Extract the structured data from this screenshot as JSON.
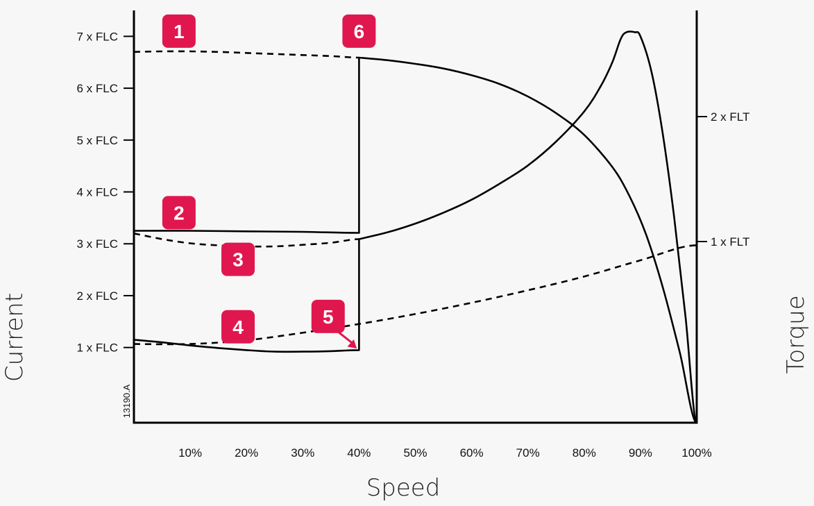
{
  "chart_data": {
    "type": "line",
    "xlabel": "Speed",
    "ylabel": "Current",
    "y2label": "Torque",
    "drawing_code": "13190.A",
    "x_ticks": [
      {
        "value": 10,
        "label": "10%"
      },
      {
        "value": 20,
        "label": "20%"
      },
      {
        "value": 30,
        "label": "30%"
      },
      {
        "value": 40,
        "label": "40%"
      },
      {
        "value": 50,
        "label": "50%"
      },
      {
        "value": 60,
        "label": "60%"
      },
      {
        "value": 70,
        "label": "70%"
      },
      {
        "value": 80,
        "label": "80%"
      },
      {
        "value": 90,
        "label": "90%"
      },
      {
        "value": 100,
        "label": "100%"
      }
    ],
    "y_ticks": [
      {
        "value": 1,
        "label": "1 x FLC"
      },
      {
        "value": 2,
        "label": "2 x FLC"
      },
      {
        "value": 3,
        "label": "3 x FLC"
      },
      {
        "value": 4,
        "label": "4 x FLC"
      },
      {
        "value": 5,
        "label": "5 x FLC"
      },
      {
        "value": 6,
        "label": "6 x FLC"
      },
      {
        "value": 7,
        "label": "7 x FLC"
      }
    ],
    "y2_ticks": [
      {
        "value": 1,
        "label": "1 x FLT"
      },
      {
        "value": 2,
        "label": "2 x FLT"
      }
    ],
    "xlim": [
      0,
      100
    ],
    "ylim": [
      -0.45,
      7.5
    ],
    "y2lim": [
      -0.45,
      2.85
    ],
    "grid": false,
    "series": [
      {
        "axis": "y",
        "style": "dashed",
        "x": [
          0,
          5,
          10,
          15,
          20,
          25,
          30,
          35,
          40
        ],
        "y": [
          6.7,
          6.71,
          6.71,
          6.7,
          6.68,
          6.66,
          6.64,
          6.62,
          6.59
        ]
      },
      {
        "axis": "y",
        "style": "solid",
        "x": [
          40,
          45,
          50,
          55,
          60,
          65,
          70,
          75,
          80,
          85,
          88,
          91,
          94,
          97,
          100
        ],
        "y": [
          6.59,
          6.54,
          6.47,
          6.38,
          6.25,
          6.08,
          5.84,
          5.52,
          5.1,
          4.48,
          3.93,
          3.18,
          2.15,
          0.9,
          -0.45
        ]
      },
      {
        "axis": "y",
        "style": "solid",
        "x": [
          0,
          10,
          20,
          30,
          40,
          40
        ],
        "y": [
          3.25,
          3.25,
          3.24,
          3.23,
          3.21,
          6.59
        ]
      },
      {
        "axis": "y",
        "style": "dashed",
        "x": [
          0,
          5,
          10,
          15,
          20,
          25,
          30,
          35,
          40
        ],
        "y": [
          3.2,
          3.09,
          3.01,
          2.97,
          2.95,
          2.95,
          2.98,
          3.02,
          3.09
        ]
      },
      {
        "axis": "y",
        "style": "solid",
        "x": [
          0,
          5,
          10,
          15,
          20,
          25,
          30,
          35,
          40,
          40
        ],
        "y": [
          1.15,
          1.1,
          1.04,
          0.99,
          0.95,
          0.92,
          0.92,
          0.93,
          0.95,
          3.09
        ]
      },
      {
        "axis": "y",
        "style": "solid",
        "x": [
          40,
          45,
          50,
          55,
          60,
          65,
          70,
          75,
          80,
          83,
          85,
          86.5,
          87.5,
          89,
          90,
          92,
          94,
          96,
          98,
          100
        ],
        "y": [
          3.09,
          3.22,
          3.39,
          3.6,
          3.85,
          4.16,
          4.51,
          4.97,
          5.55,
          6.05,
          6.5,
          6.95,
          7.08,
          7.08,
          7.0,
          6.3,
          5.1,
          3.5,
          1.6,
          -0.45
        ]
      },
      {
        "axis": "y2",
        "style": "dashed",
        "x": [
          0,
          10,
          20,
          30,
          40,
          50,
          60,
          70,
          80,
          90,
          100
        ],
        "y": [
          0.18,
          0.18,
          0.21,
          0.27,
          0.34,
          0.42,
          0.51,
          0.61,
          0.72,
          0.85,
          0.97
        ]
      }
    ],
    "markers": [
      {
        "label": "1",
        "x": 8,
        "y": 7.1
      },
      {
        "label": "6",
        "x": 40,
        "y": 7.1
      },
      {
        "label": "2",
        "x": 8,
        "y": 3.6
      },
      {
        "label": "3",
        "x": 18.5,
        "y": 2.7
      },
      {
        "label": "4",
        "x": 18.5,
        "y": 1.4
      },
      {
        "label": "5",
        "x": 34.5,
        "y": 1.6,
        "arrow_to": {
          "x": 39.6,
          "y": 0.98
        }
      }
    ],
    "colors": {
      "curve": "#000000",
      "badge": "#e0174e",
      "badge_text": "#ffffff"
    }
  }
}
